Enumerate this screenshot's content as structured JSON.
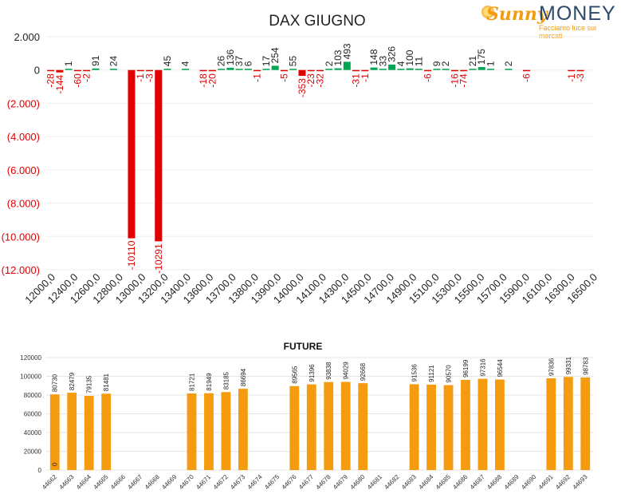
{
  "logo": {
    "brand_part1": "Sunny",
    "brand_part2": "MONEY",
    "tagline": "Facciamo luce sui mercati",
    "icon": "sun-icon",
    "color_orange": "#f39c12",
    "color_navy": "#2b4a6b"
  },
  "chart_data": [
    {
      "type": "bar",
      "title": "DAX GIUGNO",
      "categories": [
        "12000,0",
        "12400,0",
        "12600,0",
        "12800,0",
        "13000,0",
        "13200,0",
        "13400,0",
        "13600,0",
        "13700,0",
        "13800,0",
        "13900,0",
        "14000,0",
        "14100,0",
        "14300,0",
        "14500,0",
        "14700,0",
        "14900,0",
        "15100,0",
        "15300,0",
        "15500,0",
        "15700,0",
        "15900,0",
        "16100,0",
        "16300,0",
        "16500,0"
      ],
      "ylim": [
        -12000,
        2000
      ],
      "yticks": [
        2000,
        0,
        -2000,
        -4000,
        -6000,
        -8000,
        -10000,
        -12000
      ],
      "ytick_labels": [
        "2.000",
        "0",
        "(2.000)",
        "(4.000)",
        "(6.000)",
        "(8.000)",
        "(10.000)",
        "(12.000)"
      ],
      "grid": true,
      "slot_count": 46,
      "bars": [
        {
          "slot": 0,
          "value": -28
        },
        {
          "slot": 1,
          "value": -144
        },
        {
          "slot": 2,
          "value": 1
        },
        {
          "slot": 3,
          "value": -60
        },
        {
          "slot": 4,
          "value": -2
        },
        {
          "slot": 5,
          "value": 91
        },
        {
          "slot": 7,
          "value": 24
        },
        {
          "slot": 9,
          "value": -10110
        },
        {
          "slot": 10,
          "value": -1
        },
        {
          "slot": 11,
          "value": -3
        },
        {
          "slot": 12,
          "value": -10291
        },
        {
          "slot": 13,
          "value": 45
        },
        {
          "slot": 15,
          "value": 4
        },
        {
          "slot": 17,
          "value": -18
        },
        {
          "slot": 18,
          "value": -20
        },
        {
          "slot": 19,
          "value": 26
        },
        {
          "slot": 20,
          "value": 136
        },
        {
          "slot": 21,
          "value": 37
        },
        {
          "slot": 22,
          "value": 6
        },
        {
          "slot": 23,
          "value": -1
        },
        {
          "slot": 24,
          "value": 17
        },
        {
          "slot": 25,
          "value": 254
        },
        {
          "slot": 26,
          "value": -5
        },
        {
          "slot": 27,
          "value": 55
        },
        {
          "slot": 28,
          "value": -353
        },
        {
          "slot": 29,
          "value": -23
        },
        {
          "slot": 30,
          "value": -32
        },
        {
          "slot": 31,
          "value": 2
        },
        {
          "slot": 32,
          "value": 103
        },
        {
          "slot": 33,
          "value": 493
        },
        {
          "slot": 34,
          "value": -31
        },
        {
          "slot": 35,
          "value": -1
        },
        {
          "slot": 36,
          "value": 148
        },
        {
          "slot": 37,
          "value": 33
        },
        {
          "slot": 38,
          "value": 326
        },
        {
          "slot": 39,
          "value": 4
        },
        {
          "slot": 40,
          "value": 100
        },
        {
          "slot": 41,
          "value": 11
        },
        {
          "slot": 42,
          "value": -6
        },
        {
          "slot": 43,
          "value": 9
        },
        {
          "slot": 44,
          "value": 2
        },
        {
          "slot": 45,
          "value": -16
        },
        {
          "slot": 46,
          "value": -74
        },
        {
          "slot": 47,
          "value": 21
        },
        {
          "slot": 48,
          "value": 175
        },
        {
          "slot": 49,
          "value": 1
        },
        {
          "slot": 51,
          "value": 2
        },
        {
          "slot": 53,
          "value": -6
        },
        {
          "slot": 58,
          "value": -1
        },
        {
          "slot": 59,
          "value": -3
        }
      ],
      "colors": {
        "positive": "#00a651",
        "negative": "#e00000",
        "label_positive": "#222222",
        "label_negative": "#e00000"
      }
    },
    {
      "type": "bar",
      "title": "FUTURE",
      "categories": [
        "44662",
        "44663",
        "44664",
        "44665",
        "44666",
        "44667",
        "44668",
        "44669",
        "44670",
        "44671",
        "44672",
        "44673",
        "44674",
        "44675",
        "44676",
        "44677",
        "44678",
        "44679",
        "44680",
        "44681",
        "44682",
        "44683",
        "44684",
        "44685",
        "44686",
        "44687",
        "44688",
        "44689",
        "44690",
        "44691",
        "44692",
        "44693"
      ],
      "values": [
        80730,
        82479,
        79135,
        81481,
        null,
        null,
        null,
        null,
        81721,
        81949,
        83185,
        86694,
        null,
        null,
        89565,
        91396,
        93838,
        94029,
        92668,
        null,
        null,
        91536,
        91121,
        90570,
        96199,
        97316,
        96544,
        null,
        null,
        97836,
        99331,
        98783
      ],
      "inner_label": {
        "index": 0,
        "text": "0"
      },
      "ylim": [
        0,
        120000
      ],
      "yticks": [
        0,
        20000,
        40000,
        60000,
        80000,
        100000,
        120000
      ],
      "ytick_labels": [
        "0",
        "20000",
        "40000",
        "60000",
        "80000",
        "100000",
        "120000"
      ],
      "grid": true,
      "colors": {
        "bar": "#f59b0f"
      }
    }
  ]
}
